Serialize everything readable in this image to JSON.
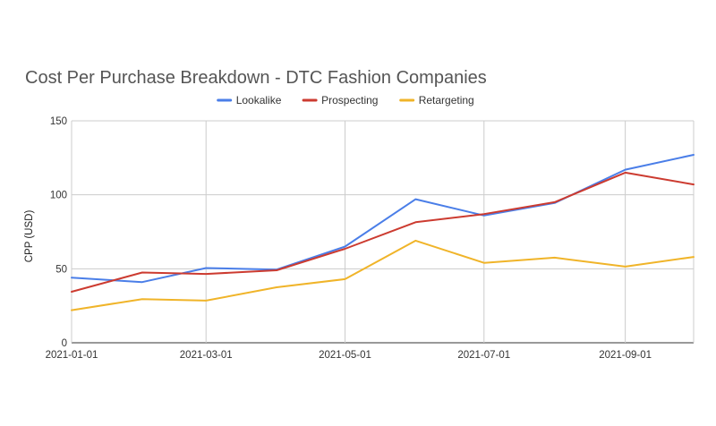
{
  "chart_data": {
    "type": "line",
    "title": "Cost Per Purchase Breakdown - DTC Fashion Companies",
    "xlabel": "",
    "ylabel": "CPP (USD)",
    "x": [
      "2021-01-01",
      "2021-02-01",
      "2021-03-01",
      "2021-04-01",
      "2021-05-01",
      "2021-06-01",
      "2021-07-01",
      "2021-08-01",
      "2021-09-01",
      "2021-10-01"
    ],
    "x_tick_labels": [
      "2021-01-01",
      "2021-03-01",
      "2021-05-01",
      "2021-07-01",
      "2021-09-01"
    ],
    "ylim": [
      0,
      150
    ],
    "y_ticks": [
      0,
      50,
      100,
      150
    ],
    "grid": true,
    "legend_position": "top",
    "series": [
      {
        "name": "Lookalike",
        "color": "#4a7ee8",
        "values": [
          44,
          41,
          50.5,
          49.5,
          65,
          97,
          86,
          94.5,
          117,
          127
        ]
      },
      {
        "name": "Prospecting",
        "color": "#cc3b30",
        "values": [
          34.5,
          47.5,
          46.5,
          49,
          63.5,
          81.5,
          87,
          95,
          115,
          107
        ]
      },
      {
        "name": "Retargeting",
        "color": "#f0b429",
        "values": [
          22,
          29.5,
          28.5,
          37.5,
          43,
          69,
          54,
          57.5,
          51.5,
          58
        ]
      }
    ]
  }
}
